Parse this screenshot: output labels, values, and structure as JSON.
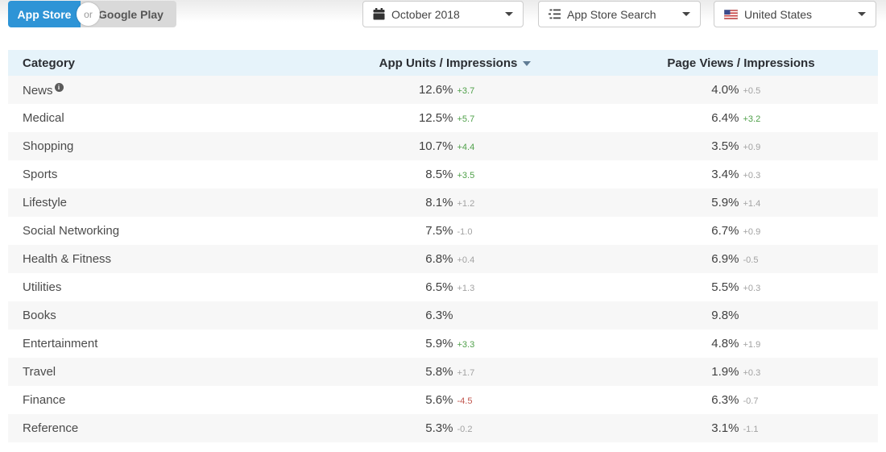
{
  "toggle": {
    "left_label": "App Store",
    "middle_label": "or",
    "right_label": "Google Play"
  },
  "filters": {
    "date": {
      "label": "October 2018",
      "icon": "calendar-icon"
    },
    "source": {
      "label": "App Store Search",
      "icon": "list-icon"
    },
    "country": {
      "label": "United States",
      "icon": "us-flag-icon"
    }
  },
  "table": {
    "columns": {
      "category": "Category",
      "app_units": "App Units / Impressions",
      "page_views": "Page Views / Impressions"
    },
    "sorted_column": "App Units / Impressions",
    "sort_direction": "desc",
    "rows": [
      {
        "category": "News",
        "has_info_icon": true,
        "app_units": "12.6%",
        "app_units_delta": "+3.7",
        "app_units_delta_color": "green",
        "page_views": "4.0%",
        "page_views_delta": "+0.5",
        "page_views_delta_color": "gray"
      },
      {
        "category": "Medical",
        "has_info_icon": false,
        "app_units": "12.5%",
        "app_units_delta": "+5.7",
        "app_units_delta_color": "green",
        "page_views": "6.4%",
        "page_views_delta": "+3.2",
        "page_views_delta_color": "green"
      },
      {
        "category": "Shopping",
        "has_info_icon": false,
        "app_units": "10.7%",
        "app_units_delta": "+4.4",
        "app_units_delta_color": "green",
        "page_views": "3.5%",
        "page_views_delta": "+0.9",
        "page_views_delta_color": "gray"
      },
      {
        "category": "Sports",
        "has_info_icon": false,
        "app_units": "8.5%",
        "app_units_delta": "+3.5",
        "app_units_delta_color": "green",
        "page_views": "3.4%",
        "page_views_delta": "+0.3",
        "page_views_delta_color": "gray"
      },
      {
        "category": "Lifestyle",
        "has_info_icon": false,
        "app_units": "8.1%",
        "app_units_delta": "+1.2",
        "app_units_delta_color": "gray",
        "page_views": "5.9%",
        "page_views_delta": "+1.4",
        "page_views_delta_color": "gray"
      },
      {
        "category": "Social Networking",
        "has_info_icon": false,
        "app_units": "7.5%",
        "app_units_delta": "-1.0",
        "app_units_delta_color": "gray",
        "page_views": "6.7%",
        "page_views_delta": "+0.9",
        "page_views_delta_color": "gray"
      },
      {
        "category": "Health & Fitness",
        "has_info_icon": false,
        "app_units": "6.8%",
        "app_units_delta": "+0.4",
        "app_units_delta_color": "gray",
        "page_views": "6.9%",
        "page_views_delta": "-0.5",
        "page_views_delta_color": "gray"
      },
      {
        "category": "Utilities",
        "has_info_icon": false,
        "app_units": "6.5%",
        "app_units_delta": "+1.3",
        "app_units_delta_color": "gray",
        "page_views": "5.5%",
        "page_views_delta": "+0.3",
        "page_views_delta_color": "gray"
      },
      {
        "category": "Books",
        "has_info_icon": false,
        "app_units": "6.3%",
        "app_units_delta": "",
        "app_units_delta_color": "gray",
        "page_views": "9.8%",
        "page_views_delta": "",
        "page_views_delta_color": "gray"
      },
      {
        "category": "Entertainment",
        "has_info_icon": false,
        "app_units": "5.9%",
        "app_units_delta": "+3.3",
        "app_units_delta_color": "green",
        "page_views": "4.8%",
        "page_views_delta": "+1.9",
        "page_views_delta_color": "gray"
      },
      {
        "category": "Travel",
        "has_info_icon": false,
        "app_units": "5.8%",
        "app_units_delta": "+1.7",
        "app_units_delta_color": "gray",
        "page_views": "1.9%",
        "page_views_delta": "+0.3",
        "page_views_delta_color": "gray"
      },
      {
        "category": "Finance",
        "has_info_icon": false,
        "app_units": "5.6%",
        "app_units_delta": "-4.5",
        "app_units_delta_color": "red",
        "page_views": "6.3%",
        "page_views_delta": "-0.7",
        "page_views_delta_color": "gray"
      },
      {
        "category": "Reference",
        "has_info_icon": false,
        "app_units": "5.3%",
        "app_units_delta": "-0.2",
        "app_units_delta_color": "gray",
        "page_views": "3.1%",
        "page_views_delta": "-1.1",
        "page_views_delta_color": "gray"
      }
    ]
  },
  "colors": {
    "accent_blue": "#2e94d6",
    "green": "#4fa049",
    "red": "#c1554d",
    "gray": "#a2a2a2",
    "header_bg": "#e6f3fa",
    "row_alt_bg": "#f7f7f7"
  }
}
